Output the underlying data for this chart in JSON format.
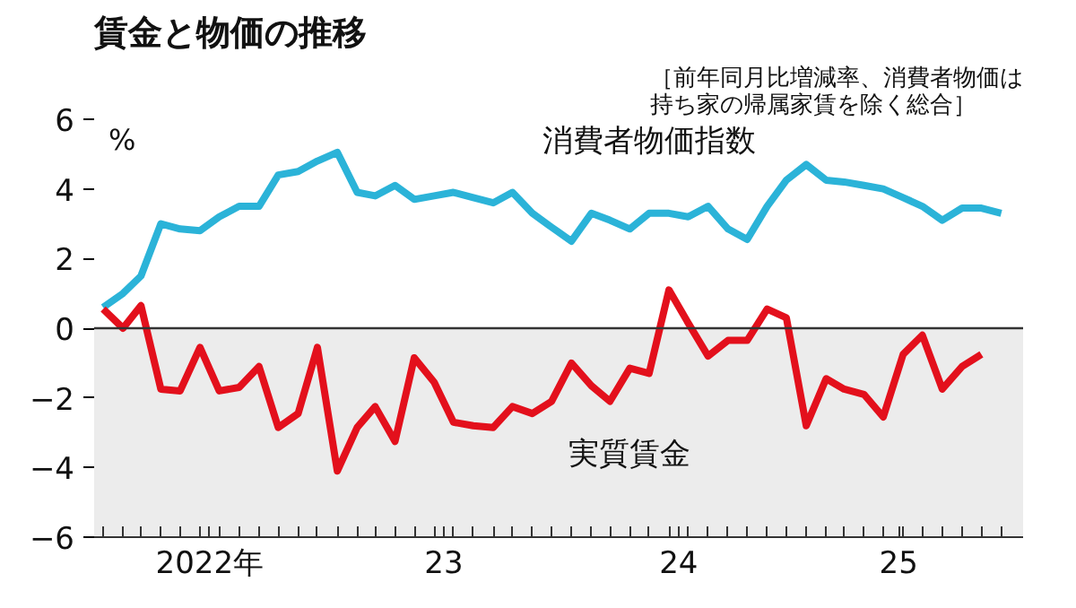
{
  "chart_data": {
    "type": "line",
    "title": "賃金と物価の推移",
    "subtitle": "［前年同月比増減率、消費者物価は持ち家の帰属家賃を除く総合］",
    "ylabel": "%",
    "x": [
      "2022-01",
      "2022-02",
      "2022-03",
      "2022-04",
      "2022-05",
      "2022-06",
      "2022-07",
      "2022-08",
      "2022-09",
      "2022-10",
      "2022-11",
      "2022-12",
      "2023-01",
      "2023-02",
      "2023-03",
      "2023-04",
      "2023-05",
      "2023-06",
      "2023-07",
      "2023-08",
      "2023-09",
      "2023-10",
      "2023-11",
      "2023-12",
      "2024-01",
      "2024-02",
      "2024-03",
      "2024-04",
      "2024-05",
      "2024-06",
      "2024-07",
      "2024-08",
      "2024-09",
      "2024-10",
      "2024-11",
      "2024-12",
      "2025-01",
      "2025-02",
      "2025-03",
      "2025-04",
      "2025-05",
      "2025-06",
      "2025-07",
      "2025-08",
      "2025-09",
      "2025-10",
      "2025-11"
    ],
    "series": [
      {
        "name": "消費者物価指数",
        "color": "#2bb3d8",
        "values": [
          0.6,
          1.0,
          1.5,
          3.0,
          2.85,
          2.8,
          3.2,
          3.5,
          3.5,
          4.4,
          4.5,
          4.8,
          5.05,
          3.9,
          3.8,
          4.1,
          3.7,
          3.8,
          3.9,
          3.75,
          3.6,
          3.9,
          3.3,
          2.9,
          2.5,
          3.3,
          3.1,
          2.85,
          3.3,
          3.3,
          3.2,
          3.5,
          2.85,
          2.55,
          3.5,
          4.25,
          4.7,
          4.25,
          4.2,
          4.1,
          4.0,
          3.75,
          3.5,
          3.1,
          3.45,
          3.45,
          3.3
        ]
      },
      {
        "name": "実質賃金",
        "color": "#e3101c",
        "values": [
          0.55,
          0.0,
          0.65,
          -1.75,
          -1.8,
          -0.55,
          -1.8,
          -1.7,
          -1.1,
          -2.85,
          -2.45,
          -0.55,
          -4.1,
          -2.85,
          -2.25,
          -3.25,
          -0.85,
          -1.55,
          -2.7,
          -2.8,
          -2.85,
          -2.25,
          -2.45,
          -2.1,
          -1.0,
          -1.65,
          -2.1,
          -1.15,
          -1.3,
          1.1,
          0.15,
          -0.8,
          -0.35,
          -0.35,
          0.55,
          0.3,
          -2.8,
          -1.45,
          -1.75,
          -1.9,
          -2.55,
          -0.75,
          -0.2,
          -1.75,
          -1.1,
          -0.75,
          null
        ]
      }
    ],
    "xlim": [
      "2021-12-18",
      "2025-12-05"
    ],
    "xticks": [
      {
        "value": "2022-01-01",
        "label": null
      },
      {
        "value": "2022-02-01",
        "label": null
      },
      {
        "value": "2022-03-01",
        "label": null
      },
      {
        "value": "2022-04-01",
        "label": null
      },
      {
        "value": "2022-05-01",
        "label": null
      },
      {
        "value": "2022-06-01",
        "label": null
      },
      {
        "value": "2022-06-16",
        "label": "2022年"
      },
      {
        "value": "2022-07-01",
        "label": null
      },
      {
        "value": "2022-08-01",
        "label": null
      },
      {
        "value": "2022-09-01",
        "label": null
      },
      {
        "value": "2022-10-01",
        "label": null
      },
      {
        "value": "2022-11-01",
        "label": null
      },
      {
        "value": "2022-12-01",
        "label": null
      },
      {
        "value": "2023-01-01",
        "label": null
      },
      {
        "value": "2023-02-01",
        "label": null
      },
      {
        "value": "2023-03-01",
        "label": null
      },
      {
        "value": "2023-04-01",
        "label": null
      },
      {
        "value": "2023-05-01",
        "label": null
      },
      {
        "value": "2023-06-01",
        "label": null
      },
      {
        "value": "2023-06-16",
        "label": "23"
      },
      {
        "value": "2023-07-01",
        "label": null
      },
      {
        "value": "2023-08-01",
        "label": null
      },
      {
        "value": "2023-09-01",
        "label": null
      },
      {
        "value": "2023-10-01",
        "label": null
      },
      {
        "value": "2023-11-01",
        "label": null
      },
      {
        "value": "2023-12-01",
        "label": null
      },
      {
        "value": "2024-01-01",
        "label": null
      },
      {
        "value": "2024-02-01",
        "label": null
      },
      {
        "value": "2024-03-01",
        "label": null
      },
      {
        "value": "2024-04-01",
        "label": null
      },
      {
        "value": "2024-05-01",
        "label": null
      },
      {
        "value": "2024-06-01",
        "label": null
      },
      {
        "value": "2024-06-16",
        "label": "24"
      },
      {
        "value": "2024-07-01",
        "label": null
      },
      {
        "value": "2024-08-01",
        "label": null
      },
      {
        "value": "2024-09-01",
        "label": null
      },
      {
        "value": "2024-10-01",
        "label": null
      },
      {
        "value": "2024-11-01",
        "label": null
      },
      {
        "value": "2024-12-01",
        "label": null
      },
      {
        "value": "2025-01-01",
        "label": null
      },
      {
        "value": "2025-02-01",
        "label": null
      },
      {
        "value": "2025-03-01",
        "label": null
      },
      {
        "value": "2025-04-01",
        "label": null
      },
      {
        "value": "2025-05-01",
        "label": null
      },
      {
        "value": "2025-05-25",
        "label": "25"
      },
      {
        "value": "2025-06-01",
        "label": null
      },
      {
        "value": "2025-07-01",
        "label": null
      },
      {
        "value": "2025-08-01",
        "label": null
      },
      {
        "value": "2025-09-01",
        "label": null
      },
      {
        "value": "2025-10-01",
        "label": null
      },
      {
        "value": "2025-11-01",
        "label": null
      }
    ],
    "ylim": [
      -6,
      6
    ],
    "yticks": [
      -6,
      -4,
      -2,
      0,
      2,
      4,
      6
    ],
    "bands": [
      {
        "axis": "y",
        "from": -6,
        "to": 0,
        "color": "#ececec"
      }
    ],
    "ref_lines": [
      {
        "axis": "y",
        "value": 0,
        "color": "#333333"
      }
    ],
    "grid": false
  }
}
